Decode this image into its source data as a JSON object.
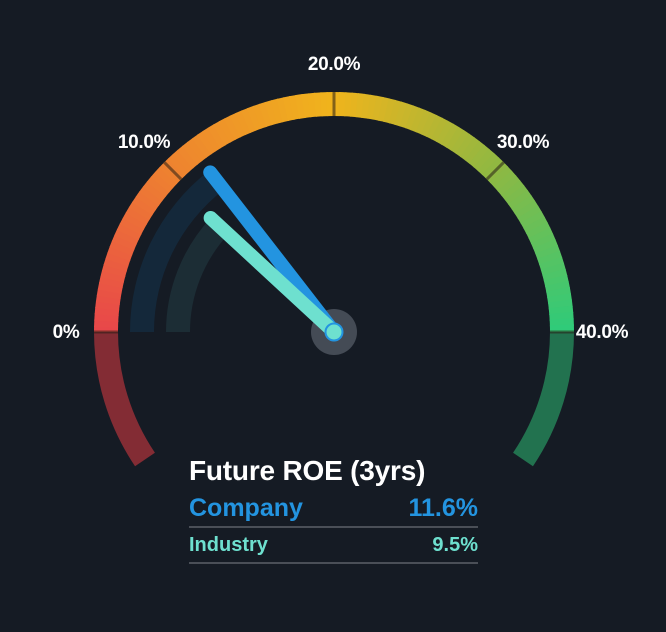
{
  "chart_data": {
    "type": "gauge",
    "title": "Future ROE (3yrs)",
    "range": [
      0,
      40
    ],
    "unit": "%",
    "ticks": [
      {
        "value": 0,
        "label": "0%"
      },
      {
        "value": 10,
        "label": "10.0%"
      },
      {
        "value": 20,
        "label": "20.0%"
      },
      {
        "value": 30,
        "label": "30.0%"
      },
      {
        "value": 40,
        "label": "40.0%"
      }
    ],
    "series": [
      {
        "name": "Company",
        "value": 11.6,
        "label": "11.6%",
        "color": "#2394e0",
        "track_color": "#14283a"
      },
      {
        "name": "Industry",
        "value": 9.5,
        "label": "9.5%",
        "color": "#6ee0cf",
        "track_color": "#1c2d35"
      }
    ],
    "gradient_stops": [
      {
        "value": 0,
        "color": "#e8464a"
      },
      {
        "value": 10,
        "color": "#ee8230"
      },
      {
        "value": 20,
        "color": "#f0b41c"
      },
      {
        "value": 30,
        "color": "#8fb842"
      },
      {
        "value": 40,
        "color": "#2ecb7a"
      }
    ],
    "low_extension_color": "#832c34",
    "high_extension_color": "#22724f"
  },
  "legend": {
    "title": "Future ROE (3yrs)",
    "company_label": "Company",
    "company_value": "11.6%",
    "industry_label": "Industry",
    "industry_value": "9.5%"
  }
}
